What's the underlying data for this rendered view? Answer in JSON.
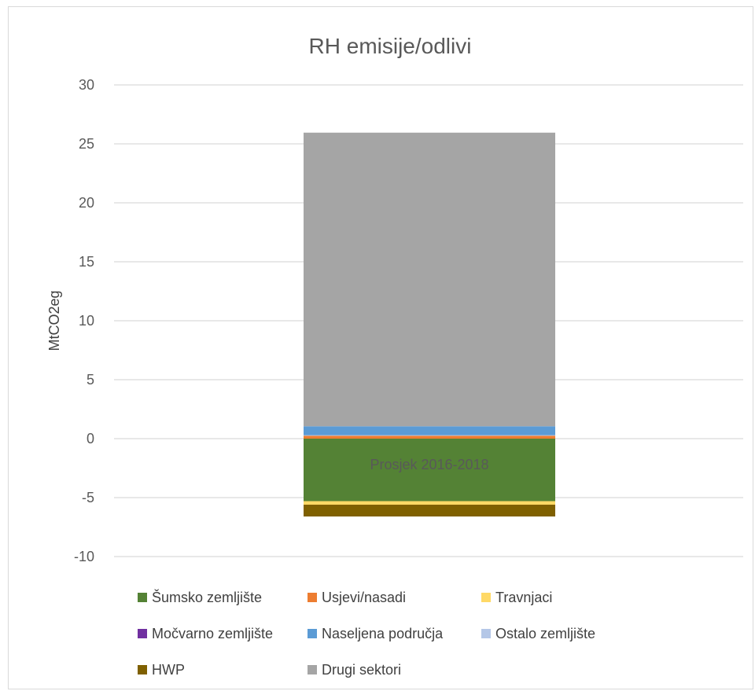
{
  "chart_data": {
    "type": "bar",
    "stacked": true,
    "title": "RH emisije/odlivi",
    "ylabel": "MtCO2eg",
    "xlabel": "",
    "ylim": [
      -10,
      30
    ],
    "yticks": [
      30,
      25,
      20,
      15,
      10,
      5,
      0,
      -5,
      -10
    ],
    "grid": true,
    "legend": "bottom",
    "categories": [
      "Prosjek 2016-2018"
    ],
    "series": [
      {
        "name": "Šumsko zemljište",
        "color": "#548235",
        "values": [
          -5.3
        ]
      },
      {
        "name": "Usjevi/nasadi",
        "color": "#ed7d31",
        "values": [
          0.25
        ]
      },
      {
        "name": "Travnjaci",
        "color": "#ffd966",
        "values": [
          -0.3
        ]
      },
      {
        "name": "Močvarno zemljište",
        "color": "#7030a0",
        "values": [
          0.0
        ]
      },
      {
        "name": "Naseljena područja",
        "color": "#5b9bd5",
        "values": [
          0.75
        ]
      },
      {
        "name": "Ostalo zemljište",
        "color": "#b4c7e7",
        "values": [
          0.05
        ]
      },
      {
        "name": "HWP",
        "color": "#7f6000",
        "values": [
          -1.0
        ]
      },
      {
        "name": "Drugi sektori",
        "color": "#a5a5a5",
        "values": [
          24.9
        ]
      }
    ],
    "stack_order_positive": [
      "Usjevi/nasadi",
      "Ostalo zemljište",
      "Naseljena područja",
      "Močvarno zemljište",
      "Drugi sektori"
    ],
    "stack_order_negative": [
      "Šumsko zemljište",
      "Travnjaci",
      "HWP"
    ]
  }
}
